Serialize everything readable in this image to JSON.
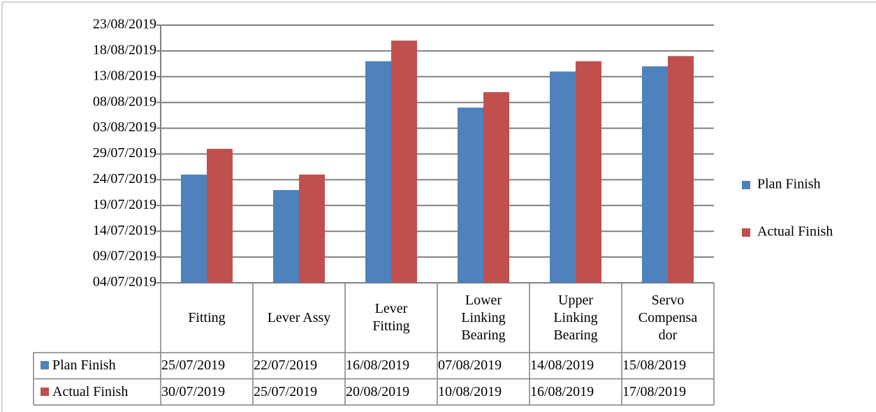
{
  "chart_data": {
    "type": "bar",
    "categories": [
      "Fitting",
      "Lever Assy",
      "Lever Fitting",
      "Lower Linking Bearing",
      "Upper Linking Bearing",
      "Servo Compensador"
    ],
    "series": [
      {
        "name": "Plan Finish",
        "color": "#4f81bd",
        "values": [
          43671,
          43668,
          43693,
          43684,
          43691,
          43692
        ],
        "value_labels": [
          "25/07/2019",
          "22/07/2019",
          "16/08/2019",
          "07/08/2019",
          "14/08/2019",
          "15/08/2019"
        ]
      },
      {
        "name": "Actual Finish",
        "color": "#c0504d",
        "values": [
          43676,
          43671,
          43697,
          43687,
          43693,
          43694
        ],
        "value_labels": [
          "30/07/2019",
          "25/07/2019",
          "20/08/2019",
          "10/08/2019",
          "16/08/2019",
          "17/08/2019"
        ]
      }
    ],
    "ylim": [
      43650,
      43700
    ],
    "yticks": [
      {
        "value": 43650,
        "label": "04/07/2019"
      },
      {
        "value": 43655,
        "label": "09/07/2019"
      },
      {
        "value": 43660,
        "label": "14/07/2019"
      },
      {
        "value": 43665,
        "label": "19/07/2019"
      },
      {
        "value": 43670,
        "label": "24/07/2019"
      },
      {
        "value": 43675,
        "label": "29/07/2019"
      },
      {
        "value": 43680,
        "label": "03/08/2019"
      },
      {
        "value": 43685,
        "label": "08/08/2019"
      },
      {
        "value": 43690,
        "label": "13/08/2019"
      },
      {
        "value": 43695,
        "label": "18/08/2019"
      },
      {
        "value": 43700,
        "label": "23/08/2019"
      }
    ],
    "grid": true,
    "legend": "right"
  }
}
